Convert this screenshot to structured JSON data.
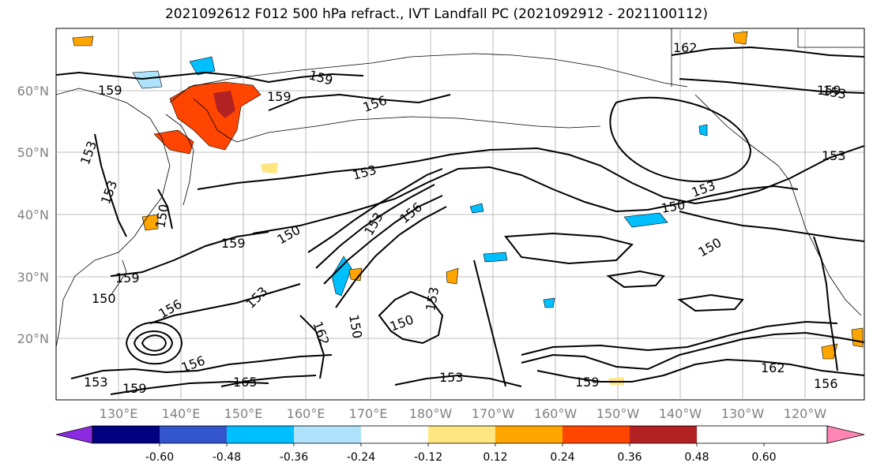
{
  "title": "2021092612 F012 500 hPa refract., IVT Landfall PC (2021092912 - 2021100112)",
  "map": {
    "lon_labels": [
      "130°E",
      "140°E",
      "150°E",
      "160°E",
      "170°E",
      "180°W",
      "170°W",
      "160°W",
      "150°W",
      "140°W",
      "130°W",
      "120°W"
    ],
    "lat_labels": [
      "60°N",
      "50°N",
      "40°N",
      "30°N",
      "20°N"
    ],
    "contour_labels": [
      "159",
      "159",
      "159",
      "156",
      "153",
      "153",
      "153",
      "150",
      "150",
      "159",
      "159",
      "150",
      "150",
      "156",
      "153",
      "156",
      "153",
      "162",
      "150",
      "153",
      "150",
      "153",
      "150",
      "153",
      "156",
      "159",
      "162",
      "165",
      "153",
      "153",
      "159",
      "153",
      "162",
      "156",
      "159"
    ]
  },
  "colorbar": {
    "tick_labels": [
      "-0.60",
      "-0.48",
      "-0.36",
      "-0.24",
      "-0.12",
      "0.12",
      "0.24",
      "0.36",
      "0.48",
      "0.60"
    ],
    "colors": [
      "#8a2be2",
      "#000080",
      "#3355cc",
      "#00bfff",
      "#aee3fb",
      "#ffffff",
      "#ffe680",
      "#ffa500",
      "#ff4500",
      "#b22222",
      "#ff85b4"
    ]
  }
}
